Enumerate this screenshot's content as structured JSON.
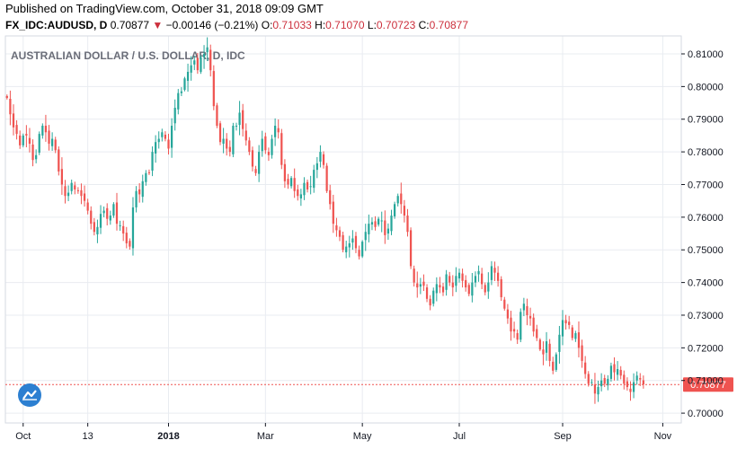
{
  "header": {
    "published": "Published on TradingView.com, October 31, 2018 09:09 GMT",
    "symbol": "FX_IDC:AUDUSD, D",
    "last": "0.70877",
    "change_arrow": "▼",
    "change": "−0.00146 (−0.21%)",
    "o_label": "O:",
    "o_value": "0.71033",
    "h_label": "H:",
    "h_value": "0.71070",
    "l_label": "L:",
    "l_value": "0.70723",
    "c_label": "C:",
    "c_value": "0.70877"
  },
  "colors": {
    "up": "#26a69a",
    "down": "#ef5350",
    "grid": "#e9ecf1",
    "axis": "#131722",
    "price_line": "#ef5350",
    "price_label_bg": "#ef5350"
  },
  "chart_data": {
    "type": "candlestick",
    "title": "AUSTRALIAN DOLLAR / U.S. DOLLAR, D, IDC",
    "ylim": [
      0.697,
      0.8155
    ],
    "y_ticks": [
      0.7,
      0.71,
      0.72,
      0.73,
      0.74,
      0.75,
      0.76,
      0.77,
      0.78,
      0.79,
      0.8,
      0.81
    ],
    "y_tick_labels": [
      "0.70000",
      "0.71000",
      "0.72000",
      "0.73000",
      "0.74000",
      "0.75000",
      "0.76000",
      "0.77000",
      "0.78000",
      "0.79000",
      "0.80000",
      "0.81000"
    ],
    "x_ticks": [
      {
        "label": "Oct",
        "index": 5,
        "bold": false
      },
      {
        "label": "13",
        "index": 25,
        "bold": false
      },
      {
        "label": "2018",
        "index": 50,
        "bold": true
      },
      {
        "label": "Mar",
        "index": 80,
        "bold": false
      },
      {
        "label": "May",
        "index": 110,
        "bold": false
      },
      {
        "label": "Jul",
        "index": 140,
        "bold": false
      },
      {
        "label": "Sep",
        "index": 172,
        "bold": false
      },
      {
        "label": "Nov",
        "index": 203,
        "bold": false
      }
    ],
    "x_count": 207,
    "grid": true,
    "last_price": 0.70877,
    "last_price_label": "0.70877",
    "closes": [
      0.7965,
      0.7915,
      0.7875,
      0.7855,
      0.782,
      0.785,
      0.785,
      0.7825,
      0.7775,
      0.779,
      0.7855,
      0.788,
      0.786,
      0.7825,
      0.784,
      0.7805,
      0.774,
      0.77,
      0.7665,
      0.7675,
      0.7705,
      0.7685,
      0.768,
      0.7665,
      0.765,
      0.762,
      0.758,
      0.7555,
      0.757,
      0.761,
      0.762,
      0.7595,
      0.7605,
      0.764,
      0.758,
      0.7575,
      0.755,
      0.752,
      0.751,
      0.763,
      0.768,
      0.767,
      0.771,
      0.7735,
      0.7735,
      0.78,
      0.783,
      0.784,
      0.786,
      0.784,
      0.781,
      0.788,
      0.7935,
      0.798,
      0.7985,
      0.8025,
      0.8045,
      0.8065,
      0.808,
      0.805,
      0.809,
      0.81,
      0.812,
      0.805,
      0.794,
      0.788,
      0.783,
      0.784,
      0.781,
      0.78,
      0.788,
      0.788,
      0.792,
      0.787,
      0.7835,
      0.78,
      0.7755,
      0.7735,
      0.78,
      0.784,
      0.7805,
      0.779,
      0.784,
      0.788,
      0.786,
      0.776,
      0.771,
      0.77,
      0.772,
      0.768,
      0.7665,
      0.767,
      0.7705,
      0.7685,
      0.7695,
      0.7745,
      0.7765,
      0.78,
      0.776,
      0.768,
      0.764,
      0.758,
      0.756,
      0.754,
      0.75,
      0.751,
      0.752,
      0.7535,
      0.7505,
      0.748,
      0.7525,
      0.7555,
      0.758,
      0.7585,
      0.757,
      0.7595,
      0.759,
      0.7545,
      0.7565,
      0.7605,
      0.764,
      0.7665,
      0.764,
      0.7605,
      0.7555,
      0.745,
      0.74,
      0.7385,
      0.7395,
      0.739,
      0.735,
      0.733,
      0.7375,
      0.7395,
      0.7385,
      0.737,
      0.7425,
      0.74,
      0.7385,
      0.742,
      0.743,
      0.7405,
      0.7385,
      0.7365,
      0.74,
      0.742,
      0.7435,
      0.7395,
      0.737,
      0.74,
      0.745,
      0.743,
      0.7405,
      0.7355,
      0.732,
      0.729,
      0.725,
      0.725,
      0.7225,
      0.731,
      0.7335,
      0.73,
      0.729,
      0.725,
      0.723,
      0.7195,
      0.718,
      0.722,
      0.716,
      0.713,
      0.718,
      0.724,
      0.7285,
      0.7275,
      0.727,
      0.723,
      0.7245,
      0.72,
      0.716,
      0.712,
      0.709,
      0.7095,
      0.706,
      0.708,
      0.71,
      0.709,
      0.7105,
      0.7145,
      0.7125,
      0.7135,
      0.7115,
      0.709,
      0.708,
      0.7065,
      0.7095,
      0.7115,
      0.7103,
      0.7088
    ]
  }
}
